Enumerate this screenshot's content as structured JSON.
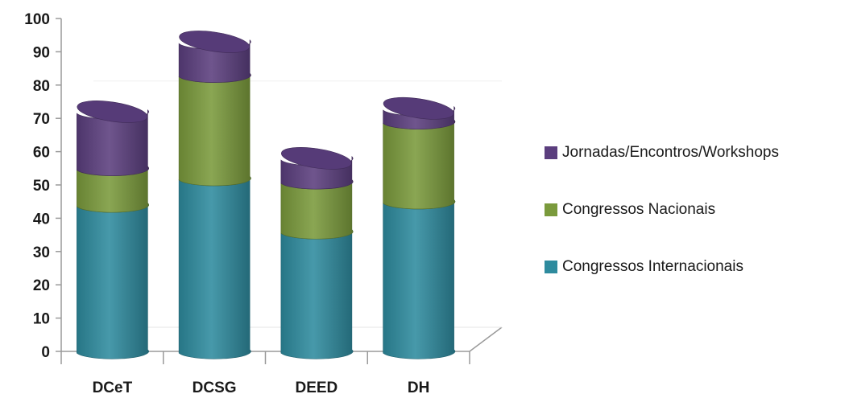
{
  "chart_data": {
    "type": "bar",
    "stacked": true,
    "style": "3d-cylinder",
    "title": "",
    "xlabel": "",
    "ylabel": "",
    "categories": [
      "DCeT",
      "DCSG",
      "DEED",
      "DH"
    ],
    "ylim": [
      0,
      100
    ],
    "yticks": [
      0,
      10,
      20,
      30,
      40,
      50,
      60,
      70,
      80,
      90,
      100
    ],
    "series": [
      {
        "name": "Congressos Internacionais",
        "color": "#2E8B9E",
        "values": [
          44,
          52,
          36,
          45
        ]
      },
      {
        "name": "Congressos Nacionais",
        "color": "#7A9A3C",
        "values": [
          11,
          31,
          15,
          24
        ]
      },
      {
        "name": "Jornadas/Encontros/Workshops",
        "color": "#5B3E7E",
        "values": [
          17,
          10,
          7,
          4
        ]
      }
    ],
    "legend_position": "right",
    "legend_order": [
      "Jornadas/Encontros/Workshops",
      "Congressos Nacionais",
      "Congressos Internacionais"
    ],
    "grid": false
  }
}
